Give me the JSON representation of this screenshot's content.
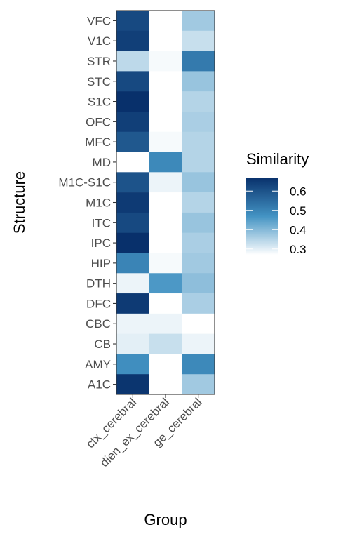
{
  "chart_data": {
    "type": "heatmap",
    "title": "",
    "xlabel": "Group",
    "ylabel": "Structure",
    "x_categories": [
      "ctx_cerebral",
      "dien_ex_cerebral",
      "ge_cerebral"
    ],
    "y_categories": [
      "VFC",
      "V1C",
      "STR",
      "STC",
      "S1C",
      "OFC",
      "MFC",
      "MD",
      "M1C-S1C",
      "M1C",
      "ITC",
      "IPC",
      "HIP",
      "DTH",
      "DFC",
      "CBC",
      "CB",
      "AMY",
      "A1C"
    ],
    "values": [
      [
        0.62,
        0.27,
        0.37
      ],
      [
        0.64,
        0.27,
        0.33
      ],
      [
        0.34,
        0.28,
        0.52
      ],
      [
        0.62,
        0.27,
        0.38
      ],
      [
        0.67,
        0.27,
        0.35
      ],
      [
        0.64,
        0.27,
        0.36
      ],
      [
        0.59,
        0.28,
        0.35
      ],
      [
        0.27,
        0.49,
        0.35
      ],
      [
        0.6,
        0.29,
        0.38
      ],
      [
        0.65,
        0.27,
        0.35
      ],
      [
        0.62,
        0.27,
        0.38
      ],
      [
        0.67,
        0.27,
        0.36
      ],
      [
        0.5,
        0.28,
        0.37
      ],
      [
        0.29,
        0.46,
        0.39
      ],
      [
        0.65,
        0.27,
        0.36
      ],
      [
        0.29,
        0.29,
        0.26
      ],
      [
        0.3,
        0.33,
        0.29
      ],
      [
        0.48,
        0.27,
        0.49
      ],
      [
        0.66,
        0.27,
        0.37
      ]
    ],
    "color_scale": {
      "low": 0.27,
      "high": 0.67,
      "low_color": "#ffffff",
      "mid_color": "#4393c3",
      "high_color": "#08306b"
    },
    "legend": {
      "title": "Similarity",
      "ticks": [
        "0.6",
        "0.5",
        "0.4",
        "0.3"
      ],
      "tick_values": [
        0.6,
        0.5,
        0.4,
        0.3
      ],
      "position": "right"
    },
    "grid": false
  }
}
